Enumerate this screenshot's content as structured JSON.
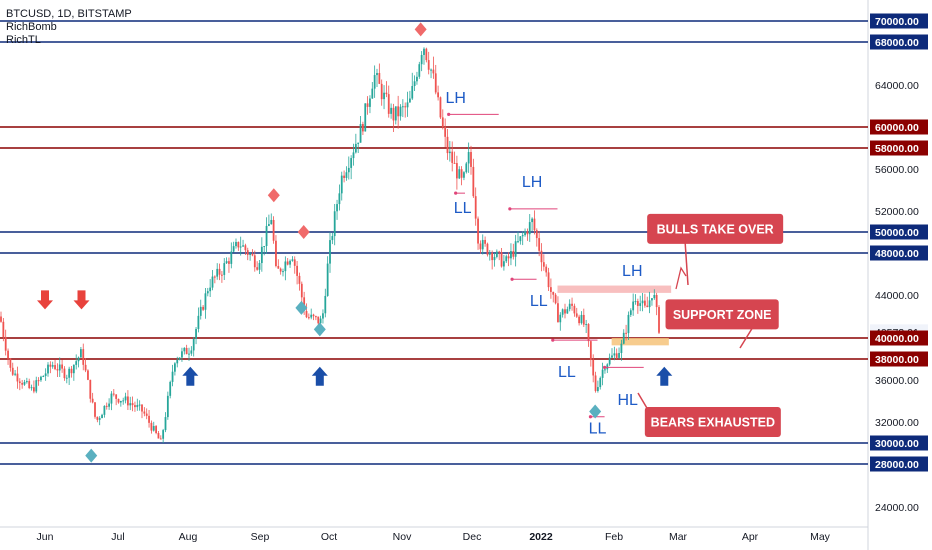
{
  "legend": {
    "symbol": "BTCUSD, 1D, BITSTAMP",
    "indicators": [
      "RichBomb",
      "RichTL"
    ]
  },
  "colors": {
    "up": "#26a69a",
    "down": "#ef5350",
    "blue_line": "#0d2a7a",
    "red_line": "#8b0000",
    "callout": "#d64550",
    "wave_label": "#1e5bc6",
    "zone": "#f6c37a"
  },
  "chart_data": {
    "type": "candlestick",
    "title": "BTCUSD, 1D, BITSTAMP",
    "x_ticks": [
      "Jun",
      "Jul",
      "Aug",
      "Sep",
      "Oct",
      "Nov",
      "Dec",
      "2022",
      "Feb",
      "Mar",
      "Apr",
      "May"
    ],
    "y_ticks": [
      "70000.00",
      "68000.00",
      "64000.00",
      "60000.00",
      "58000.00",
      "56000.00",
      "52000.00",
      "50000.00",
      "48000.00",
      "44000.00",
      "40573.01",
      "40000.00",
      "38000.00",
      "36000.00",
      "32000.00",
      "30000.00",
      "28000.00",
      "24000.00"
    ],
    "ylim": [
      23000,
      71500
    ],
    "current_price": "40573.01",
    "price_path": [
      {
        "date": "2021-05-19",
        "price": 42000
      },
      {
        "date": "2021-05-22",
        "price": 37000
      },
      {
        "date": "2021-05-28",
        "price": 35000
      },
      {
        "date": "2021-06-04",
        "price": 37500
      },
      {
        "date": "2021-06-10",
        "price": 36500
      },
      {
        "date": "2021-06-16",
        "price": 38600
      },
      {
        "date": "2021-06-22",
        "price": 32000
      },
      {
        "date": "2021-06-28",
        "price": 34500
      },
      {
        "date": "2021-07-05",
        "price": 34000
      },
      {
        "date": "2021-07-12",
        "price": 33000
      },
      {
        "date": "2021-07-20",
        "price": 30000
      },
      {
        "date": "2021-07-26",
        "price": 38000
      },
      {
        "date": "2021-08-02",
        "price": 39000
      },
      {
        "date": "2021-08-10",
        "price": 45000
      },
      {
        "date": "2021-08-16",
        "price": 46500
      },
      {
        "date": "2021-08-23",
        "price": 49000
      },
      {
        "date": "2021-08-31",
        "price": 47000
      },
      {
        "date": "2021-09-06",
        "price": 51500
      },
      {
        "date": "2021-09-08",
        "price": 46000
      },
      {
        "date": "2021-09-15",
        "price": 48000
      },
      {
        "date": "2021-09-21",
        "price": 42000
      },
      {
        "date": "2021-09-28",
        "price": 41500
      },
      {
        "date": "2021-10-01",
        "price": 48000
      },
      {
        "date": "2021-10-06",
        "price": 55000
      },
      {
        "date": "2021-10-15",
        "price": 60000
      },
      {
        "date": "2021-10-20",
        "price": 65000
      },
      {
        "date": "2021-10-28",
        "price": 61000
      },
      {
        "date": "2021-11-04",
        "price": 62000
      },
      {
        "date": "2021-11-10",
        "price": 68000
      },
      {
        "date": "2021-11-14",
        "price": 65000
      },
      {
        "date": "2021-11-20",
        "price": 58000
      },
      {
        "date": "2021-11-27",
        "price": 54500
      },
      {
        "date": "2021-11-30",
        "price": 57500
      },
      {
        "date": "2021-12-04",
        "price": 49000
      },
      {
        "date": "2021-12-10",
        "price": 48000
      },
      {
        "date": "2021-12-16",
        "price": 47000
      },
      {
        "date": "2021-12-22",
        "price": 49000
      },
      {
        "date": "2021-12-28",
        "price": 51000
      },
      {
        "date": "2022-01-02",
        "price": 47000
      },
      {
        "date": "2022-01-08",
        "price": 42000
      },
      {
        "date": "2022-01-14",
        "price": 43000
      },
      {
        "date": "2022-01-20",
        "price": 41000
      },
      {
        "date": "2022-01-24",
        "price": 35000
      },
      {
        "date": "2022-01-28",
        "price": 37500
      },
      {
        "date": "2022-02-04",
        "price": 39000
      },
      {
        "date": "2022-02-10",
        "price": 44000
      },
      {
        "date": "2022-02-15",
        "price": 42500
      },
      {
        "date": "2022-02-18",
        "price": 44500
      },
      {
        "date": "2022-02-21",
        "price": 40573
      }
    ],
    "horizontal_lines": [
      {
        "price": 70000,
        "color": "blue"
      },
      {
        "price": 68000,
        "color": "blue"
      },
      {
        "price": 60000,
        "color": "red"
      },
      {
        "price": 58000,
        "color": "red"
      },
      {
        "price": 50000,
        "color": "blue"
      },
      {
        "price": 48000,
        "color": "blue"
      },
      {
        "price": 40000,
        "color": "red"
      },
      {
        "price": 38000,
        "color": "red"
      },
      {
        "price": 30000,
        "color": "blue"
      },
      {
        "price": 28000,
        "color": "blue"
      }
    ],
    "wave_labels": [
      {
        "text": "LH",
        "date": "2021-11-24",
        "price": 62300
      },
      {
        "text": "LL",
        "date": "2021-11-27",
        "price": 51800
      },
      {
        "text": "LH",
        "date": "2021-12-28",
        "price": 54300
      },
      {
        "text": "LL",
        "date": "2021-12-31",
        "price": 43000
      },
      {
        "text": "LH",
        "date": "2022-02-09",
        "price": 45800
      },
      {
        "text": "LL",
        "date": "2022-01-12",
        "price": 36300
      },
      {
        "text": "HL",
        "date": "2022-02-07",
        "price": 33600
      },
      {
        "text": "LL",
        "date": "2022-01-25",
        "price": 30900
      }
    ],
    "callouts": [
      {
        "text": "BULLS TAKE OVER",
        "date": "2022-03-17",
        "price": 50300
      },
      {
        "text": "SUPPORT ZONE",
        "date": "2022-03-20",
        "price": 42200
      },
      {
        "text": "BEARS EXHAUSTED",
        "date": "2022-03-16",
        "price": 32000
      }
    ],
    "support_zone": {
      "from": "2022-01-31",
      "to": "2022-02-25",
      "low": 39300,
      "high": 40000
    },
    "resistance_zone": {
      "from": "2022-01-08",
      "to": "2022-02-26",
      "low": 44200,
      "high": 44900
    },
    "sell_arrows": [
      {
        "date": "2021-06-01",
        "price": 43500
      },
      {
        "date": "2021-06-16",
        "price": 43500
      }
    ],
    "buy_arrows": [
      {
        "date": "2021-08-02",
        "price": 36400
      },
      {
        "date": "2021-09-27",
        "price": 36400
      },
      {
        "date": "2022-02-23",
        "price": 36400
      }
    ],
    "red_diamonds": [
      {
        "date": "2021-09-07",
        "price": 53500
      },
      {
        "date": "2021-09-20",
        "price": 50000
      },
      {
        "date": "2021-11-09",
        "price": 69200
      }
    ],
    "teal_diamonds": [
      {
        "date": "2021-06-20",
        "price": 28800
      },
      {
        "date": "2021-09-19",
        "price": 42800
      },
      {
        "date": "2021-09-27",
        "price": 40800
      },
      {
        "date": "2022-01-24",
        "price": 33000
      }
    ]
  }
}
